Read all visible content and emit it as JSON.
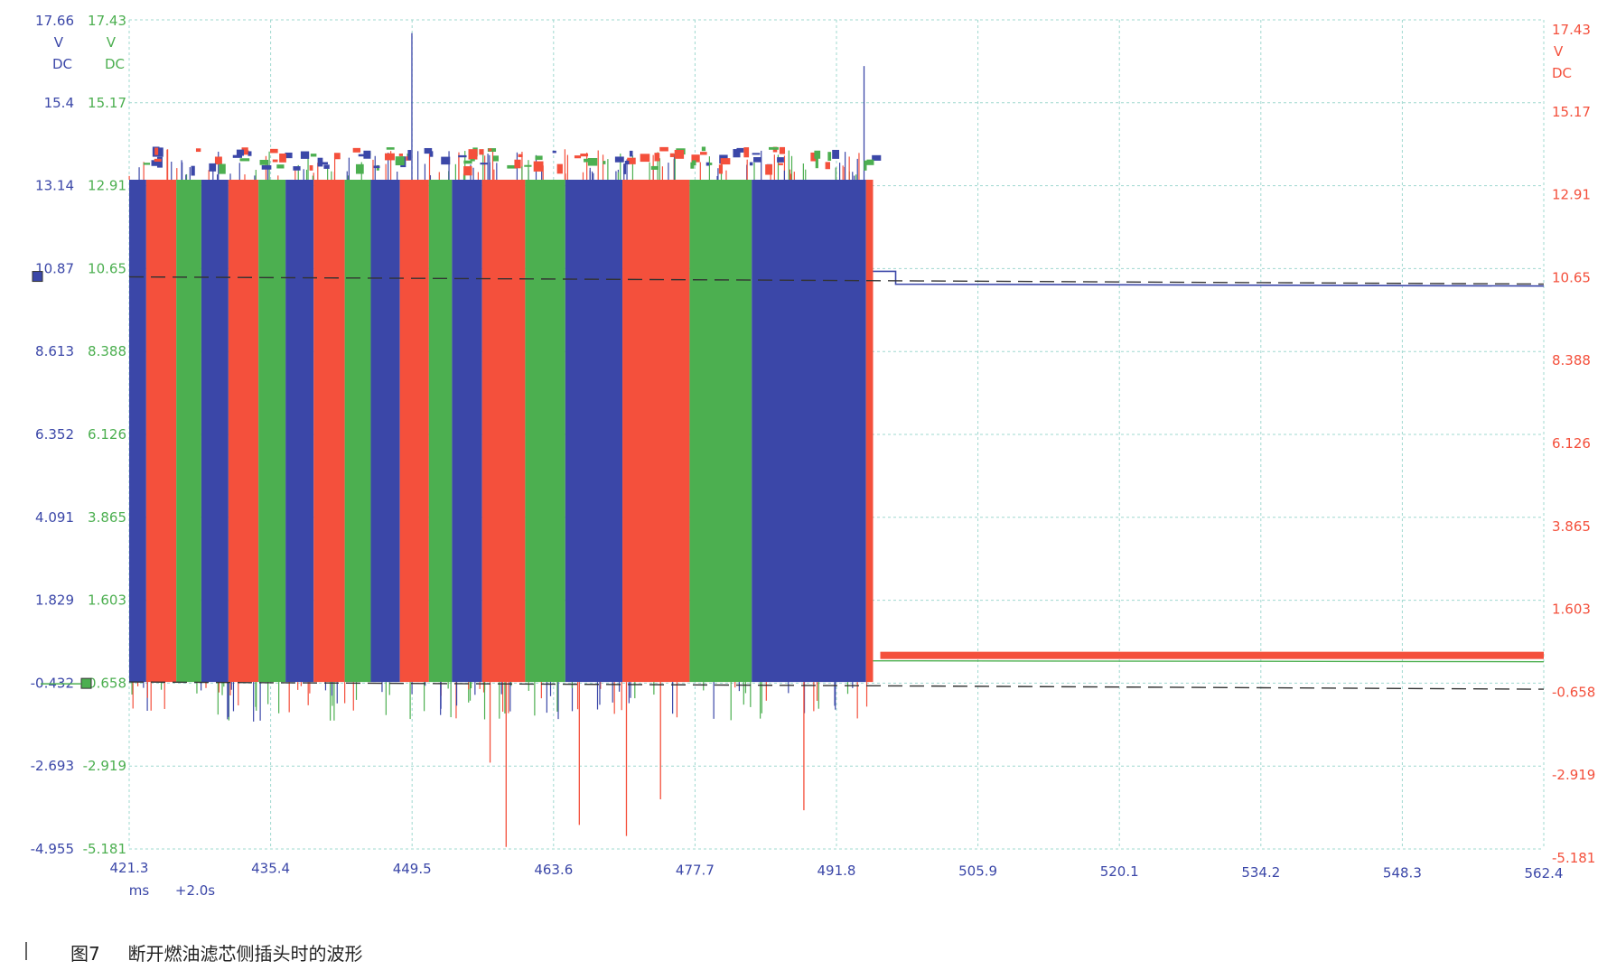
{
  "caption": {
    "label": "图7",
    "text": "断开燃油滤芯侧插头时的波形"
  },
  "chart_data": {
    "type": "line",
    "title": "",
    "x_unit": "ms",
    "x_offset_label": "+2.0s",
    "x_ticks": [
      "421.3",
      "435.4",
      "449.5",
      "463.6",
      "477.7",
      "491.8",
      "505.9",
      "520.1",
      "534.2",
      "548.3",
      "562.4"
    ],
    "xlim": [
      421.3,
      562.4
    ],
    "grid": true,
    "axes": [
      {
        "id": "blue",
        "side": "left-outer",
        "color": "#3b47a8",
        "unit": [
          "V",
          "DC"
        ],
        "top_label": "17.66",
        "ticks": [
          "15.4",
          "13.14",
          "10.87",
          "8.613",
          "6.352",
          "4.091",
          "1.829",
          "-0.432",
          "-2.693",
          "-4.955"
        ],
        "ylim": [
          -4.955,
          17.66
        ]
      },
      {
        "id": "green",
        "side": "left-inner",
        "color": "#4caf50",
        "unit": [
          "V",
          "DC"
        ],
        "top_label": "17.43",
        "ticks": [
          "15.17",
          "12.91",
          "10.65",
          "8.388",
          "6.126",
          "3.865",
          "1.603",
          "-0.658",
          "-2.919",
          "-5.181"
        ],
        "ylim": [
          -5.181,
          17.43
        ]
      },
      {
        "id": "red",
        "side": "right",
        "color": "#f4503c",
        "unit": [
          "V",
          "DC"
        ],
        "top_label": "17.43",
        "ticks": [
          "15.17",
          "12.91",
          "10.65",
          "8.388",
          "6.126",
          "3.865",
          "1.603",
          "-0.658",
          "-2.919",
          "-5.181"
        ],
        "ylim": [
          -5.181,
          17.43
        ]
      }
    ],
    "series": [
      {
        "axis": "blue",
        "color": "#3b47a8",
        "switching": {
          "x_start": 421.3,
          "x_end": 495.5,
          "high": 13.3,
          "low": -0.4
        },
        "after": {
          "x_start": 495.5,
          "x_end": 562.4,
          "level": 10.45
        }
      },
      {
        "axis": "green",
        "color": "#4caf50",
        "switching": {
          "x_start": 421.3,
          "x_end": 495.5,
          "high": 13.1,
          "low": -0.4
        },
        "after": {
          "x_start": 495.5,
          "x_end": 562.4,
          "level": 0.0
        }
      },
      {
        "axis": "red",
        "color": "#f4503c",
        "switching": {
          "x_start": 421.3,
          "x_end": 495.5,
          "high": 13.2,
          "low": -0.4
        },
        "after": {
          "x_start": 495.5,
          "x_end": 562.4,
          "level": 0.0
        }
      }
    ],
    "segments": [
      {
        "x0": 421.3,
        "x1": 423.0,
        "color": "blue"
      },
      {
        "x0": 423.0,
        "x1": 426.0,
        "color": "red"
      },
      {
        "x0": 426.0,
        "x1": 428.5,
        "color": "green"
      },
      {
        "x0": 428.5,
        "x1": 431.2,
        "color": "blue"
      },
      {
        "x0": 431.2,
        "x1": 434.2,
        "color": "red"
      },
      {
        "x0": 434.2,
        "x1": 436.9,
        "color": "green"
      },
      {
        "x0": 436.9,
        "x1": 439.7,
        "color": "blue"
      },
      {
        "x0": 439.7,
        "x1": 442.8,
        "color": "red"
      },
      {
        "x0": 442.8,
        "x1": 445.4,
        "color": "green"
      },
      {
        "x0": 445.4,
        "x1": 448.3,
        "color": "blue"
      },
      {
        "x0": 448.3,
        "x1": 451.2,
        "color": "red"
      },
      {
        "x0": 451.2,
        "x1": 453.5,
        "color": "green"
      },
      {
        "x0": 453.5,
        "x1": 456.5,
        "color": "blue"
      },
      {
        "x0": 456.5,
        "x1": 460.8,
        "color": "red"
      },
      {
        "x0": 460.8,
        "x1": 464.8,
        "color": "green"
      },
      {
        "x0": 464.8,
        "x1": 470.5,
        "color": "blue"
      },
      {
        "x0": 470.5,
        "x1": 477.2,
        "color": "red"
      },
      {
        "x0": 477.2,
        "x1": 483.4,
        "color": "green"
      },
      {
        "x0": 483.4,
        "x1": 494.8,
        "color": "blue"
      },
      {
        "x0": 494.8,
        "x1": 495.5,
        "color": "red"
      }
    ],
    "reference_lines": [
      {
        "axis": "blue",
        "value": 10.65,
        "x_start": 421.3,
        "x_end": 562.4,
        "style": "dashed"
      },
      {
        "axis": "blue",
        "value": -0.4,
        "x_start": 421.3,
        "x_end": 562.4,
        "style": "dashed"
      }
    ],
    "markers": [
      {
        "axis": "blue",
        "value": 10.65,
        "color": "#3b47a8"
      },
      {
        "axis": "blue",
        "value": -0.45,
        "color": "#4caf50"
      }
    ]
  }
}
